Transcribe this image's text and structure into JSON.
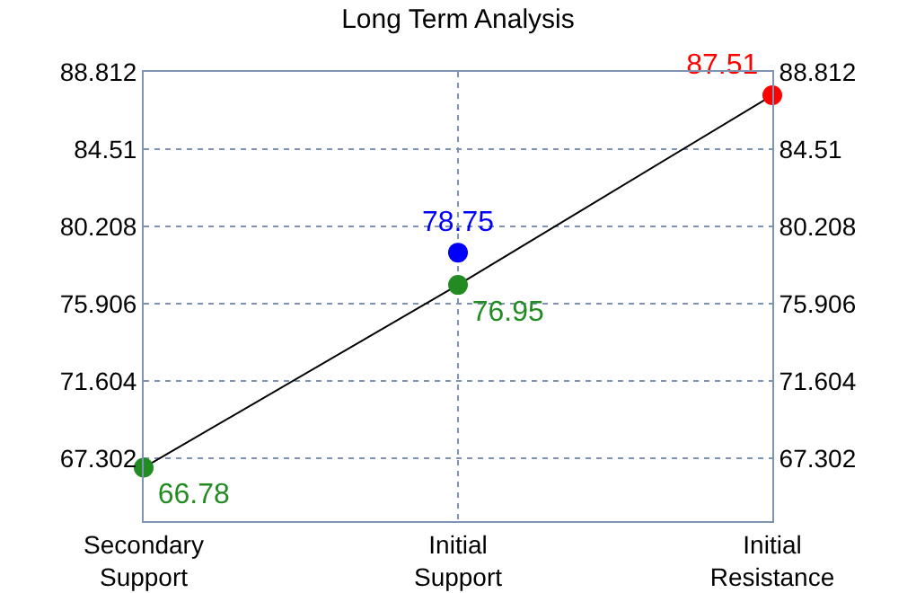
{
  "chart_data": {
    "type": "line",
    "title": "Long Term Analysis",
    "categories": [
      "Secondary Support",
      "Initial Support",
      "Initial Resistance"
    ],
    "ylim": [
      63.8,
      88.812
    ],
    "yticks": [
      67.302,
      71.604,
      75.906,
      80.208,
      84.51,
      88.812
    ],
    "y2lim": [
      63.8,
      88.812
    ],
    "y2ticks": [
      67.302,
      71.604,
      75.906,
      80.208,
      84.51,
      88.812
    ],
    "grid": true,
    "series": [
      {
        "color": "#000000",
        "marker": "none",
        "values": [
          66.78,
          76.95,
          87.51
        ]
      },
      {
        "type": "scatter",
        "color": "#228b22",
        "marker": "circle",
        "x": [
          "Secondary Support",
          "Initial Support"
        ],
        "values": [
          66.78,
          76.95
        ],
        "value_labels": [
          "66.78",
          "76.95"
        ]
      },
      {
        "type": "scatter",
        "color": "#ff0000",
        "marker": "circle",
        "x": [
          "Initial Resistance"
        ],
        "values": [
          87.51
        ],
        "value_labels": [
          "87.51"
        ]
      },
      {
        "type": "scatter",
        "color": "#0000ff",
        "marker": "circle",
        "x": [
          "Initial Support"
        ],
        "values": [
          78.75
        ],
        "value_labels": [
          "78.75"
        ]
      }
    ]
  }
}
